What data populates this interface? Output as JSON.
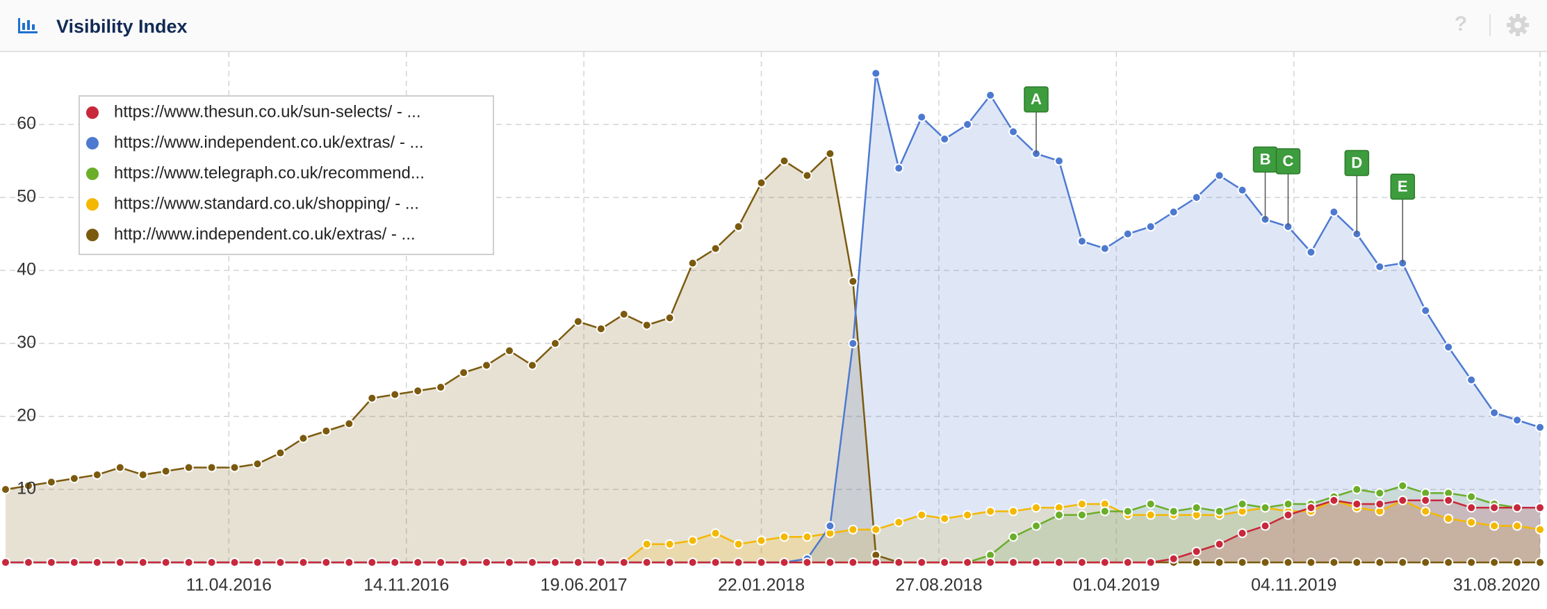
{
  "chart_data": {
    "type": "area",
    "title": "Visibility Index",
    "help": "?",
    "x": [
      "13.07.2015",
      "10.08.2015",
      "07.09.2015",
      "05.10.2015",
      "02.11.2015",
      "30.11.2015",
      "28.12.2015",
      "25.01.2016",
      "22.02.2016",
      "21.03.2016",
      "18.04.2016",
      "16.05.2016",
      "13.06.2016",
      "11.07.2016",
      "08.08.2016",
      "05.09.2016",
      "03.10.2016",
      "31.10.2016",
      "28.11.2016",
      "26.12.2016",
      "23.01.2017",
      "20.02.2017",
      "20.03.2017",
      "17.04.2017",
      "15.05.2017",
      "12.06.2017",
      "10.07.2017",
      "07.08.2017",
      "04.09.2017",
      "02.10.2017",
      "30.10.2017",
      "27.11.2017",
      "25.12.2017",
      "22.01.2018",
      "19.02.2018",
      "19.03.2018",
      "16.04.2018",
      "14.05.2018",
      "11.06.2018",
      "09.07.2018",
      "06.08.2018",
      "03.09.2018",
      "01.10.2018",
      "29.10.2018",
      "26.11.2018",
      "24.12.2018",
      "21.01.2019",
      "18.02.2019",
      "18.03.2019",
      "15.04.2019",
      "13.05.2019",
      "10.06.2019",
      "08.07.2019",
      "05.08.2019",
      "02.09.2019",
      "30.09.2019",
      "28.10.2019",
      "25.11.2019",
      "23.12.2019",
      "20.01.2020",
      "17.02.2020",
      "16.03.2020",
      "13.04.2020",
      "11.05.2020",
      "08.06.2020",
      "06.07.2020",
      "03.08.2020",
      "31.08.2020"
    ],
    "series": [
      {
        "name": "https://www.thesun.co.uk/sun-selects/ - ...",
        "color": "#c8283c",
        "values": [
          0,
          0,
          0,
          0,
          0,
          0,
          0,
          0,
          0,
          0,
          0,
          0,
          0,
          0,
          0,
          0,
          0,
          0,
          0,
          0,
          0,
          0,
          0,
          0,
          0,
          0,
          0,
          0,
          0,
          0,
          0,
          0,
          0,
          0,
          0,
          0,
          0,
          0,
          0,
          0,
          0,
          0,
          0,
          0,
          0,
          0,
          0,
          0,
          0,
          0,
          0,
          0.5,
          1.5,
          2.5,
          4,
          5,
          6.5,
          7.5,
          8.5,
          8,
          8,
          8.5,
          8.5,
          8.5,
          7.5,
          7.5,
          7.5,
          7.5
        ]
      },
      {
        "name": "https://www.independent.co.uk/extras/ - ...",
        "color": "#4d7ad0",
        "values": [
          0,
          0,
          0,
          0,
          0,
          0,
          0,
          0,
          0,
          0,
          0,
          0,
          0,
          0,
          0,
          0,
          0,
          0,
          0,
          0,
          0,
          0,
          0,
          0,
          0,
          0,
          0,
          0,
          0,
          0,
          0,
          0,
          0,
          0,
          0,
          0.5,
          5,
          30,
          67,
          54,
          61,
          58,
          60,
          64,
          59,
          56,
          55,
          44,
          43,
          45,
          46,
          48,
          50,
          53,
          51,
          47,
          46,
          42.5,
          48,
          45,
          40.5,
          41,
          34.5,
          29.5,
          25,
          20.5,
          19.5,
          18.5
        ]
      },
      {
        "name": "https://www.telegraph.co.uk/recommend...",
        "color": "#6aae2a",
        "values": [
          0,
          0,
          0,
          0,
          0,
          0,
          0,
          0,
          0,
          0,
          0,
          0,
          0,
          0,
          0,
          0,
          0,
          0,
          0,
          0,
          0,
          0,
          0,
          0,
          0,
          0,
          0,
          0,
          0,
          0,
          0,
          0,
          0,
          0,
          0,
          0,
          0,
          0,
          0,
          0,
          0,
          0,
          0,
          1,
          3.5,
          5,
          6.5,
          6.5,
          7,
          7,
          8,
          7,
          7.5,
          7,
          8,
          7.5,
          8,
          8,
          9,
          10,
          9.5,
          10.5,
          9.5,
          9.5,
          9,
          8,
          7.5,
          7.5
        ]
      },
      {
        "name": "https://www.standard.co.uk/shopping/ - ...",
        "color": "#f4b800",
        "values": [
          0,
          0,
          0,
          0,
          0,
          0,
          0,
          0,
          0,
          0,
          0,
          0,
          0,
          0,
          0,
          0,
          0,
          0,
          0,
          0,
          0,
          0,
          0,
          0,
          0,
          0,
          0,
          0,
          2.5,
          2.5,
          3,
          4,
          2.5,
          3,
          3.5,
          3.5,
          4,
          4.5,
          4.5,
          5.5,
          6.5,
          6,
          6.5,
          7,
          7,
          7.5,
          7.5,
          8,
          8,
          6.5,
          6.5,
          6.5,
          6.5,
          6.5,
          7,
          7.5,
          7,
          7,
          8.5,
          7.5,
          7,
          8.5,
          7,
          6,
          5.5,
          5,
          5,
          4.5
        ]
      },
      {
        "name": "http://www.independent.co.uk/extras/ - ...",
        "color": "#7b5a0e",
        "values": [
          10,
          10.5,
          11,
          11.5,
          12,
          13,
          12,
          12.5,
          13,
          13,
          13,
          13.5,
          15,
          17,
          18,
          19,
          22.5,
          23,
          23.5,
          24,
          26,
          27,
          29,
          27,
          30,
          33,
          32,
          34,
          32.5,
          33.5,
          41,
          43,
          46,
          52,
          55,
          53,
          56,
          38.5,
          1,
          0,
          0,
          0,
          0,
          0,
          0,
          0,
          0,
          0,
          0,
          0,
          0,
          0,
          0,
          0,
          0,
          0,
          0,
          0,
          0,
          0,
          0,
          0,
          0,
          0,
          0,
          0,
          0,
          0
        ]
      }
    ],
    "annotations": [
      {
        "text": "A",
        "x": "24.12.2018"
      },
      {
        "text": "B",
        "x": "30.09.2019"
      },
      {
        "text": "C",
        "x": "28.10.2019"
      },
      {
        "text": "D",
        "x": "20.01.2020"
      },
      {
        "text": "E",
        "x": "16.03.2020"
      }
    ],
    "xlim": [
      "13.07.2015",
      "31.08.2020"
    ],
    "xticks": [
      "11.04.2016",
      "14.11.2016",
      "19.06.2017",
      "22.01.2018",
      "27.08.2018",
      "01.04.2019",
      "04.11.2019",
      "31.08.2020"
    ],
    "ylim": [
      0,
      70
    ],
    "yticks": [
      10,
      20,
      30,
      40,
      50,
      60
    ],
    "grid": true,
    "legend": "upper-left"
  }
}
